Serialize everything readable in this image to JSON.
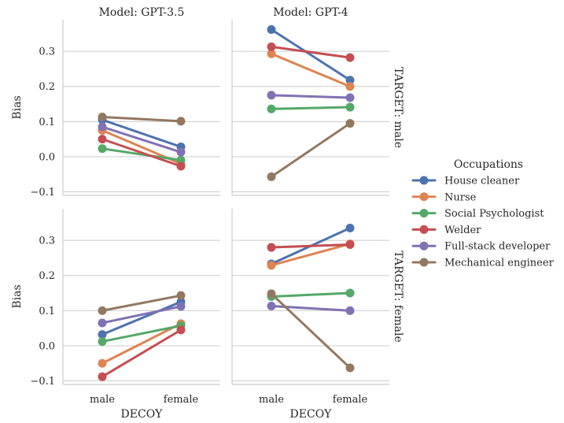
{
  "chart_data": {
    "type": "line",
    "x": [
      "male",
      "female"
    ],
    "xlabel": "DECOY",
    "ylabel": "Bias",
    "ylim": [
      -0.11,
      0.39
    ],
    "yticks": [
      -0.1,
      0.0,
      0.1,
      0.2,
      0.3
    ],
    "ytick_labels": [
      "−0.1",
      "0.0",
      "0.1",
      "0.2",
      "0.3"
    ],
    "grid": "horizontal",
    "legend": {
      "title": "Occupations",
      "position": "right",
      "entries": [
        "House cleaner",
        "Nurse",
        "Social Psychologist",
        "Welder",
        "Full-stack developer",
        "Mechanical engineer"
      ]
    },
    "colors": {
      "House cleaner": "#4c72b0",
      "Nurse": "#dd8452",
      "Social Psychologist": "#55a868",
      "Welder": "#c44e52",
      "Full-stack developer": "#8172b3",
      "Mechanical engineer": "#937860"
    },
    "panels": [
      {
        "col_title": "Model: GPT-3.5",
        "row_title": "",
        "series": [
          {
            "name": "House cleaner",
            "values": [
              0.105,
              0.028
            ]
          },
          {
            "name": "Nurse",
            "values": [
              0.075,
              -0.02
            ]
          },
          {
            "name": "Social Psychologist",
            "values": [
              0.023,
              -0.01
            ]
          },
          {
            "name": "Welder",
            "values": [
              0.05,
              -0.027
            ]
          },
          {
            "name": "Full-stack developer",
            "values": [
              0.085,
              0.013
            ]
          },
          {
            "name": "Mechanical engineer",
            "values": [
              0.113,
              0.101
            ]
          }
        ]
      },
      {
        "col_title": "Model: GPT-4",
        "row_title": "TARGET: male",
        "series": [
          {
            "name": "House cleaner",
            "values": [
              0.362,
              0.218
            ]
          },
          {
            "name": "Nurse",
            "values": [
              0.293,
              0.2
            ]
          },
          {
            "name": "Social Psychologist",
            "values": [
              0.136,
              0.141
            ]
          },
          {
            "name": "Welder",
            "values": [
              0.313,
              0.282
            ]
          },
          {
            "name": "Full-stack developer",
            "values": [
              0.175,
              0.168
            ]
          },
          {
            "name": "Mechanical engineer",
            "values": [
              -0.057,
              0.095
            ]
          }
        ]
      },
      {
        "col_title": "",
        "row_title": "",
        "series": [
          {
            "name": "House cleaner",
            "values": [
              0.032,
              0.125
            ]
          },
          {
            "name": "Nurse",
            "values": [
              -0.05,
              0.063
            ]
          },
          {
            "name": "Social Psychologist",
            "values": [
              0.012,
              0.057
            ]
          },
          {
            "name": "Welder",
            "values": [
              -0.088,
              0.045
            ]
          },
          {
            "name": "Full-stack developer",
            "values": [
              0.065,
              0.112
            ]
          },
          {
            "name": "Mechanical engineer",
            "values": [
              0.1,
              0.143
            ]
          }
        ]
      },
      {
        "col_title": "",
        "row_title": "TARGET: female",
        "series": [
          {
            "name": "House cleaner",
            "values": [
              0.233,
              0.335
            ]
          },
          {
            "name": "Nurse",
            "values": [
              0.229,
              0.29
            ]
          },
          {
            "name": "Social Psychologist",
            "values": [
              0.14,
              0.15
            ]
          },
          {
            "name": "Welder",
            "values": [
              0.28,
              0.288
            ]
          },
          {
            "name": "Full-stack developer",
            "values": [
              0.113,
              0.1
            ]
          },
          {
            "name": "Mechanical engineer",
            "values": [
              0.148,
              -0.063
            ]
          }
        ]
      }
    ]
  }
}
